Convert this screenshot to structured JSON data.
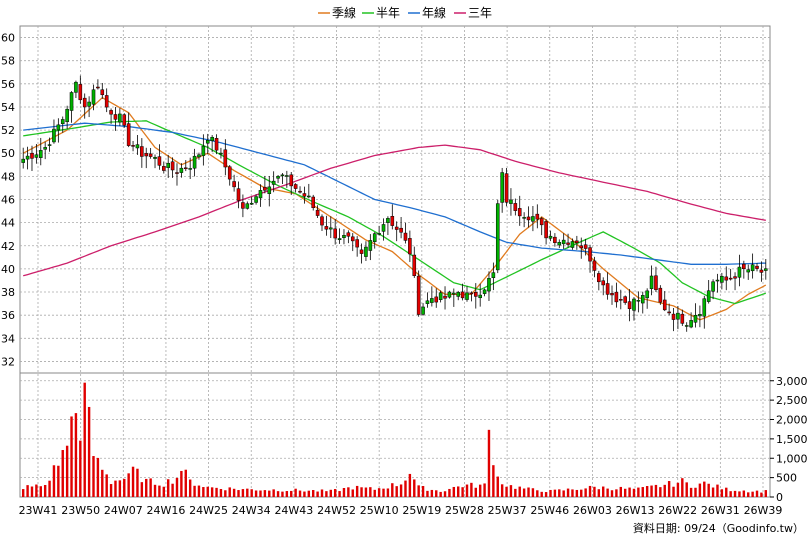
{
  "chart_data": {
    "type": "candlestick",
    "legend": {
      "placement": "top-center",
      "items": [
        {
          "label": "季線",
          "color": "#e07b1f"
        },
        {
          "label": "半年",
          "color": "#22c322"
        },
        {
          "label": "年線",
          "color": "#1f6fd0"
        },
        {
          "label": "三年",
          "color": "#cc1f6a"
        }
      ]
    },
    "price_axis": {
      "min": 31,
      "max": 61,
      "ticks": [
        32,
        34,
        36,
        38,
        40,
        42,
        44,
        46,
        48,
        50,
        52,
        54,
        56,
        58,
        60
      ]
    },
    "volume_axis": {
      "min": 0,
      "max": 3200,
      "ticks": [
        0,
        500,
        1000,
        1500,
        2000,
        2500,
        3000
      ],
      "tick_labels": [
        "0",
        "500",
        "1,000",
        "1,500",
        "2,000",
        "2,500",
        "3,000"
      ]
    },
    "x_labels": [
      "23W41",
      "23W50",
      "24W07",
      "24W16",
      "24W25",
      "24W34",
      "24W43",
      "24W52",
      "25W10",
      "25W19",
      "25W28",
      "25W37",
      "25W46",
      "26W03",
      "26W13",
      "26W22",
      "26W31",
      "26W39"
    ],
    "grid": true,
    "up_color": "#00b000",
    "down_color": "#e00000",
    "volume_color": "#e00000",
    "price_anchors": [
      [
        0,
        49.5
      ],
      [
        5,
        50.5
      ],
      [
        9,
        53
      ],
      [
        12,
        56
      ],
      [
        14,
        54
      ],
      [
        17,
        56
      ],
      [
        19,
        54
      ],
      [
        22,
        53
      ],
      [
        24,
        51
      ],
      [
        27,
        50
      ],
      [
        30,
        49.5
      ],
      [
        32,
        48.8
      ],
      [
        35,
        48.5
      ],
      [
        38,
        49
      ],
      [
        40,
        50
      ],
      [
        42,
        51.5
      ],
      [
        44,
        50.5
      ],
      [
        47,
        48
      ],
      [
        50,
        45
      ],
      [
        53,
        46.5
      ],
      [
        56,
        47.5
      ],
      [
        59,
        48
      ],
      [
        62,
        47
      ],
      [
        65,
        46
      ],
      [
        68,
        44
      ],
      [
        71,
        43
      ],
      [
        74,
        42.5
      ],
      [
        77,
        41
      ],
      [
        80,
        43
      ],
      [
        83,
        44.5
      ],
      [
        86,
        43
      ],
      [
        88,
        41.5
      ],
      [
        90,
        36.5
      ],
      [
        93,
        37.5
      ],
      [
        96,
        37.5
      ],
      [
        99,
        38
      ],
      [
        102,
        37.5
      ],
      [
        105,
        38.5
      ],
      [
        107,
        39.5
      ],
      [
        108,
        45.5
      ],
      [
        109,
        48
      ],
      [
        110,
        46
      ],
      [
        113,
        45
      ],
      [
        116,
        44.5
      ],
      [
        119,
        43
      ],
      [
        122,
        42.5
      ],
      [
        126,
        42.5
      ],
      [
        129,
        41
      ],
      [
        132,
        38.5
      ],
      [
        135,
        37.5
      ],
      [
        138,
        37
      ],
      [
        141,
        37.5
      ],
      [
        143,
        39
      ],
      [
        145,
        37
      ],
      [
        148,
        36
      ],
      [
        151,
        35.5
      ],
      [
        154,
        36.5
      ],
      [
        157,
        39
      ],
      [
        160,
        39
      ],
      [
        163,
        39.8
      ],
      [
        166,
        40
      ],
      [
        169,
        39.6
      ]
    ],
    "volume_anchors": [
      [
        0,
        250
      ],
      [
        5,
        300
      ],
      [
        8,
        900
      ],
      [
        10,
        1300
      ],
      [
        11,
        2600
      ],
      [
        13,
        1200
      ],
      [
        14,
        3100
      ],
      [
        15,
        2000
      ],
      [
        16,
        1100
      ],
      [
        18,
        800
      ],
      [
        20,
        400
      ],
      [
        24,
        500
      ],
      [
        25,
        700
      ],
      [
        28,
        400
      ],
      [
        32,
        350
      ],
      [
        35,
        500
      ],
      [
        36,
        750
      ],
      [
        38,
        400
      ],
      [
        42,
        250
      ],
      [
        50,
        200
      ],
      [
        60,
        180
      ],
      [
        70,
        150
      ],
      [
        75,
        250
      ],
      [
        80,
        200
      ],
      [
        86,
        350
      ],
      [
        88,
        650
      ],
      [
        90,
        250
      ],
      [
        95,
        150
      ],
      [
        100,
        300
      ],
      [
        105,
        300
      ],
      [
        106,
        1650
      ],
      [
        108,
        500
      ],
      [
        110,
        300
      ],
      [
        115,
        200
      ],
      [
        120,
        150
      ],
      [
        130,
        250
      ],
      [
        140,
        200
      ],
      [
        148,
        350
      ],
      [
        150,
        400
      ],
      [
        152,
        300
      ],
      [
        155,
        350
      ],
      [
        160,
        200
      ],
      [
        166,
        150
      ],
      [
        169,
        150
      ]
    ],
    "ma_anchors": {
      "季線": [
        [
          0,
          50
        ],
        [
          10,
          52
        ],
        [
          18,
          54.8
        ],
        [
          24,
          53.5
        ],
        [
          30,
          50.5
        ],
        [
          36,
          49
        ],
        [
          42,
          50
        ],
        [
          48,
          48.5
        ],
        [
          55,
          47
        ],
        [
          62,
          46.5
        ],
        [
          70,
          44.5
        ],
        [
          78,
          42.5
        ],
        [
          84,
          41.5
        ],
        [
          90,
          39.5
        ],
        [
          96,
          37.8
        ],
        [
          102,
          37.8
        ],
        [
          108,
          40.5
        ],
        [
          113,
          43
        ],
        [
          118,
          44.5
        ],
        [
          125,
          42.5
        ],
        [
          132,
          40
        ],
        [
          140,
          37.5
        ],
        [
          148,
          36.8
        ],
        [
          154,
          35.6
        ],
        [
          160,
          36.5
        ],
        [
          165,
          37.8
        ],
        [
          169,
          38.6
        ]
      ],
      "半年": [
        [
          0,
          51.5
        ],
        [
          12,
          52.2
        ],
        [
          20,
          52.7
        ],
        [
          28,
          52.8
        ],
        [
          34,
          51.8
        ],
        [
          42,
          50.5
        ],
        [
          50,
          48.8
        ],
        [
          58,
          47.2
        ],
        [
          66,
          45.8
        ],
        [
          74,
          44.5
        ],
        [
          82,
          42.8
        ],
        [
          90,
          40.8
        ],
        [
          98,
          38.8
        ],
        [
          104,
          38.2
        ],
        [
          110,
          39.3
        ],
        [
          118,
          40.8
        ],
        [
          126,
          42.2
        ],
        [
          132,
          43.2
        ],
        [
          138,
          42
        ],
        [
          145,
          40.5
        ],
        [
          150,
          38.8
        ],
        [
          156,
          37.6
        ],
        [
          162,
          37
        ],
        [
          169,
          37.9
        ]
      ],
      "年線": [
        [
          0,
          52
        ],
        [
          14,
          52.6
        ],
        [
          24,
          52.3
        ],
        [
          34,
          51.8
        ],
        [
          44,
          51
        ],
        [
          54,
          50
        ],
        [
          64,
          49
        ],
        [
          72,
          47.5
        ],
        [
          80,
          46
        ],
        [
          88,
          45.3
        ],
        [
          96,
          44.5
        ],
        [
          104,
          43.2
        ],
        [
          110,
          42.3
        ],
        [
          118,
          41.8
        ],
        [
          128,
          41.5
        ],
        [
          136,
          41.2
        ],
        [
          144,
          40.8
        ],
        [
          152,
          40.4
        ],
        [
          160,
          40.4
        ],
        [
          169,
          40.5
        ]
      ],
      "三年": [
        [
          0,
          39.4
        ],
        [
          10,
          40.5
        ],
        [
          20,
          42
        ],
        [
          30,
          43.2
        ],
        [
          40,
          44.5
        ],
        [
          50,
          46
        ],
        [
          60,
          47.3
        ],
        [
          70,
          48.7
        ],
        [
          80,
          49.8
        ],
        [
          90,
          50.5
        ],
        [
          96,
          50.7
        ],
        [
          104,
          50.3
        ],
        [
          112,
          49.3
        ],
        [
          122,
          48.3
        ],
        [
          132,
          47.5
        ],
        [
          142,
          46.7
        ],
        [
          152,
          45.6
        ],
        [
          160,
          44.8
        ],
        [
          169,
          44.2
        ]
      ]
    }
  },
  "footer": {
    "source_label": "資料日期: 09/24（Goodinfo.tw）"
  }
}
